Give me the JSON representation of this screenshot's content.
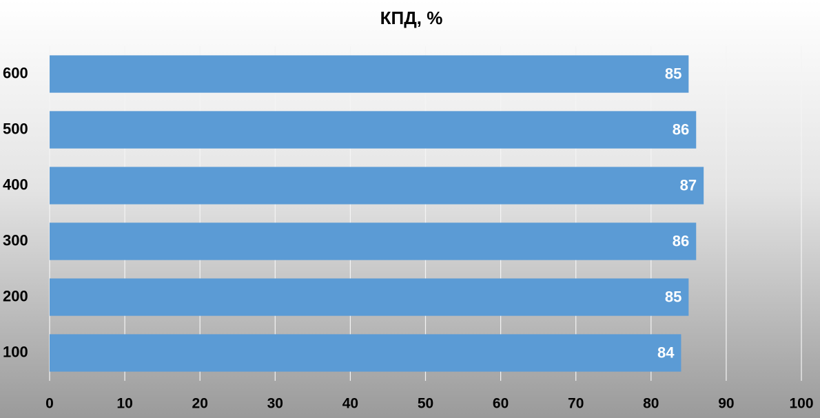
{
  "chart_data": {
    "type": "bar",
    "orientation": "horizontal",
    "title": "КПД, %",
    "categories": [
      "100",
      "200",
      "300",
      "400",
      "500",
      "600"
    ],
    "values": [
      84,
      85,
      86,
      87,
      86,
      85
    ],
    "color": "#5b9bd5",
    "xlim": [
      0,
      100
    ],
    "xticks": [
      0,
      10,
      20,
      30,
      40,
      50,
      60,
      70,
      80,
      90,
      100
    ],
    "grid": true,
    "data_labels": true
  }
}
